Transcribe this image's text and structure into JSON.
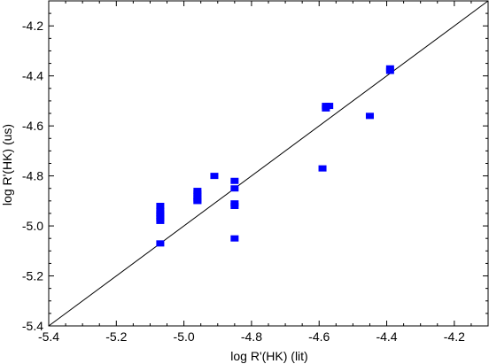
{
  "chart_data": {
    "type": "scatter",
    "xlabel": "log R'(HK) (lit)",
    "ylabel": "log R'(HK) (us)",
    "xlim": [
      -5.4,
      -4.1
    ],
    "ylim": [
      -5.4,
      -4.1
    ],
    "x_ticks": [
      -5.4,
      -5.2,
      -5.0,
      -4.8,
      -4.6,
      -4.4,
      -4.2
    ],
    "y_ticks": [
      -5.4,
      -5.2,
      -5.0,
      -4.8,
      -4.6,
      -4.4,
      -4.2
    ],
    "x_tick_labels": [
      "-5.4",
      "-5.2",
      "-5.0",
      "-4.8",
      "-4.6",
      "-4.4",
      "-4.2"
    ],
    "y_tick_labels": [
      "-5.4",
      "-5.2",
      "-5.0",
      "-4.8",
      "-4.6",
      "-4.4",
      "-4.2"
    ],
    "grid": false,
    "reference_line": {
      "label": "",
      "x": [
        -5.4,
        -4.1
      ],
      "y": [
        -5.4,
        -4.1
      ]
    },
    "marker_color": "#0000ff",
    "series": [
      {
        "x": [
          -5.07,
          -5.07,
          -5.07,
          -5.07,
          -5.07,
          -5.07,
          -5.07,
          -4.96,
          -4.96,
          -4.96,
          -4.96,
          -4.96,
          -4.96,
          -4.91,
          -4.85,
          -4.85,
          -4.85,
          -4.85,
          -4.85,
          -4.59,
          -4.58,
          -4.58,
          -4.57,
          -4.45,
          -4.39,
          -4.39
        ],
        "y": [
          -4.92,
          -4.94,
          -4.95,
          -4.96,
          -4.97,
          -4.98,
          -5.07,
          -4.86,
          -4.87,
          -4.88,
          -4.89,
          -4.9,
          -4.9,
          -4.8,
          -4.82,
          -4.85,
          -4.91,
          -4.92,
          -5.05,
          -4.77,
          -4.52,
          -4.53,
          -4.52,
          -4.56,
          -4.37,
          -4.38
        ]
      }
    ]
  }
}
